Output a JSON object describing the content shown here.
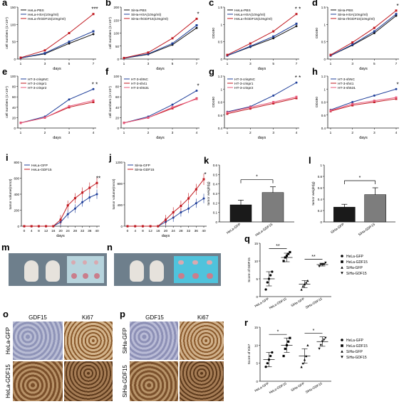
{
  "figure": {
    "colors": {
      "black": "#111111",
      "blue": "#1f3f9a",
      "red": "#c0181f",
      "pink": "#e8587a"
    },
    "photo_panels": {
      "m": {
        "letter": "m"
      },
      "n": {
        "letter": "n"
      }
    },
    "ihc_panels": {
      "o": {
        "letter": "o",
        "columns": [
          "GDF15",
          "Ki67"
        ],
        "rows": [
          "HeLa-GFP",
          "HeLa-GDF15"
        ]
      },
      "p": {
        "letter": "p",
        "columns": [
          "GDF15",
          "Ki67"
        ],
        "rows": [
          "SiHa-GFP",
          "SiHa-GDF15"
        ]
      }
    }
  },
  "chart_data": [
    {
      "panel": "a",
      "type": "line",
      "x": [
        1,
        3,
        5,
        7
      ],
      "xlabel": "days",
      "ylabel": "cell numbers (1×10⁴)",
      "ylim": [
        0,
        150
      ],
      "yticks": [
        0,
        50,
        100,
        150
      ],
      "legend": "top-left",
      "annotation": "***",
      "series": [
        {
          "name": "HeLa-PBS",
          "color": "black",
          "values": [
            3,
            15,
            45,
            72
          ]
        },
        {
          "name": "HeLa-HSA(10ng/ml)",
          "color": "blue",
          "values": [
            3,
            17,
            50,
            80
          ]
        },
        {
          "name": "HeLa-rhGDF15(10ng/ml)",
          "color": "red",
          "values": [
            4,
            25,
            75,
            130
          ]
        }
      ]
    },
    {
      "panel": "b",
      "type": "line",
      "x": [
        1,
        3,
        5,
        7
      ],
      "xlabel": "days",
      "ylabel": "cell numbers (1×10⁴)",
      "ylim": [
        0,
        200
      ],
      "yticks": [
        0,
        50,
        100,
        150,
        200
      ],
      "legend": "top-left",
      "annotation": "*",
      "series": [
        {
          "name": "SiHa-PBS",
          "color": "black",
          "values": [
            3,
            18,
            55,
            120
          ]
        },
        {
          "name": "SiHa-HSA(10ng/ml)",
          "color": "blue",
          "values": [
            3,
            20,
            60,
            130
          ]
        },
        {
          "name": "SiHa-rhGDF15(10ng/ml)",
          "color": "red",
          "values": [
            4,
            25,
            80,
            155
          ]
        }
      ]
    },
    {
      "panel": "c",
      "type": "line",
      "x": [
        1,
        3,
        5,
        7
      ],
      "xlabel": "days",
      "ylabel": "OD490",
      "ylim": [
        0,
        1.5
      ],
      "yticks": [
        0,
        0.5,
        1.0,
        1.5
      ],
      "legend": "top-left",
      "annotation": "* *",
      "series": [
        {
          "name": "HeLa-PBS",
          "color": "black",
          "values": [
            0.1,
            0.35,
            0.6,
            0.95
          ]
        },
        {
          "name": "HeLa-HSA(10ng/ml)",
          "color": "blue",
          "values": [
            0.1,
            0.37,
            0.65,
            1.02
          ]
        },
        {
          "name": "HeLa-rhGDF15(10ng/ml)",
          "color": "red",
          "values": [
            0.12,
            0.45,
            0.8,
            1.3
          ]
        }
      ]
    },
    {
      "panel": "d",
      "type": "line",
      "x": [
        1,
        3,
        5,
        7
      ],
      "xlabel": "days",
      "ylabel": "OD490",
      "ylim": [
        0,
        1.5
      ],
      "yticks": [
        0,
        0.5,
        1.0,
        1.5
      ],
      "legend": "top-left",
      "annotation": "*",
      "series": [
        {
          "name": "SiHa-PBS",
          "color": "black",
          "values": [
            0.1,
            0.4,
            0.75,
            1.25
          ]
        },
        {
          "name": "SiHa-HSA(10ng/ml)",
          "color": "blue",
          "values": [
            0.1,
            0.42,
            0.8,
            1.3
          ]
        },
        {
          "name": "SiHa-rhGDF15(10ng/ml)",
          "color": "red",
          "values": [
            0.12,
            0.48,
            0.9,
            1.4
          ]
        }
      ]
    },
    {
      "panel": "e",
      "type": "line",
      "x": [
        1,
        2,
        3,
        4
      ],
      "xlabel": "days",
      "ylabel": "cell numbers (1×10⁴)",
      "ylim": [
        0,
        100
      ],
      "yticks": [
        0,
        20,
        40,
        60,
        80,
        100
      ],
      "legend": "top-left",
      "annotation": "* *",
      "series": [
        {
          "name": "HT-3-crispNC",
          "color": "blue",
          "values": [
            10,
            22,
            55,
            75
          ]
        },
        {
          "name": "HT-3-crispr1",
          "color": "red",
          "values": [
            10,
            20,
            40,
            50
          ]
        },
        {
          "name": "HT-3-crispr2",
          "color": "pink",
          "values": [
            10,
            20,
            42,
            53
          ]
        }
      ]
    },
    {
      "panel": "f",
      "type": "line",
      "x": [
        1,
        2,
        3,
        4
      ],
      "xlabel": "days",
      "ylabel": "cell numbers (1×10⁴)",
      "ylim": [
        0,
        100
      ],
      "yticks": [
        0,
        20,
        40,
        60,
        80,
        100
      ],
      "legend": "top-left",
      "annotation": "*",
      "series": [
        {
          "name": "HT-3-shNC",
          "color": "blue",
          "values": [
            10,
            22,
            45,
            72
          ]
        },
        {
          "name": "HT-3-sh41",
          "color": "red",
          "values": [
            10,
            20,
            38,
            57
          ]
        },
        {
          "name": "HT-3-sh531",
          "color": "pink",
          "values": [
            10,
            20,
            40,
            56
          ]
        }
      ]
    },
    {
      "panel": "g",
      "type": "line",
      "x": [
        1,
        2,
        3,
        4
      ],
      "xlabel": "days",
      "ylabel": "OD490",
      "ylim": [
        0.4,
        1.2
      ],
      "yticks": [
        0.4,
        0.6,
        0.8,
        1.0,
        1.2
      ],
      "legend": "top-left",
      "annotation": "* *",
      "series": [
        {
          "name": "HT-3-crispNC",
          "color": "blue",
          "values": [
            0.65,
            0.73,
            0.9,
            1.1
          ]
        },
        {
          "name": "HT-3-crispr1",
          "color": "red",
          "values": [
            0.62,
            0.7,
            0.78,
            0.86
          ]
        },
        {
          "name": "HT-3-crispr2",
          "color": "pink",
          "values": [
            0.64,
            0.72,
            0.8,
            0.88
          ]
        }
      ]
    },
    {
      "panel": "h",
      "type": "line",
      "x": [
        1,
        2,
        3,
        4
      ],
      "xlabel": "days",
      "ylabel": "OD490",
      "ylim": [
        0.4,
        1.2
      ],
      "yticks": [
        0.4,
        0.6,
        0.8,
        1.0,
        1.2
      ],
      "legend": "top-left",
      "annotation": "*",
      "series": [
        {
          "name": "HT-3-shNC",
          "color": "blue",
          "values": [
            0.68,
            0.8,
            0.9,
            1.0
          ]
        },
        {
          "name": "HT-3-sh41",
          "color": "red",
          "values": [
            0.66,
            0.75,
            0.8,
            0.85
          ]
        },
        {
          "name": "HT-3-sh531",
          "color": "pink",
          "values": [
            0.67,
            0.77,
            0.82,
            0.87
          ]
        }
      ]
    },
    {
      "panel": "i",
      "type": "line",
      "x": [
        0,
        4,
        8,
        12,
        16,
        20,
        24,
        28,
        32,
        36,
        40
      ],
      "xlabel": "days",
      "ylabel": "tumor volume(mm3)",
      "ylim": [
        0,
        800
      ],
      "yticks": [
        0,
        200,
        400,
        600,
        800
      ],
      "legend": "top-left",
      "annotation": "**",
      "series": [
        {
          "name": "HeLa-GFP",
          "color": "blue",
          "values": [
            0,
            0,
            0,
            0,
            0,
            50,
            150,
            220,
            300,
            360,
            400
          ],
          "err": 60
        },
        {
          "name": "HeLa-GDF15",
          "color": "red",
          "values": [
            0,
            0,
            0,
            0,
            0,
            80,
            260,
            350,
            420,
            480,
            540
          ],
          "err": 70
        }
      ]
    },
    {
      "panel": "j",
      "type": "line",
      "x": [
        0,
        4,
        8,
        12,
        16,
        20,
        24,
        28,
        32,
        36,
        40
      ],
      "xlabel": "days",
      "ylabel": "tumor volume(mm3)",
      "ylim": [
        0,
        1200
      ],
      "yticks": [
        0,
        400,
        800,
        1200
      ],
      "legend": "top-left",
      "annotation": "*",
      "series": [
        {
          "name": "SiHa-GFP",
          "color": "blue",
          "values": [
            0,
            0,
            0,
            0,
            0,
            80,
            160,
            260,
            330,
            430,
            520
          ],
          "err": 90
        },
        {
          "name": "SiHa-GDF15",
          "color": "red",
          "values": [
            0,
            0,
            0,
            0,
            0,
            120,
            260,
            380,
            520,
            690,
            880
          ],
          "err": 110
        }
      ]
    },
    {
      "panel": "k",
      "type": "bar",
      "categories": [
        "HeLa-GFP",
        "HeLa-GDF15"
      ],
      "values": [
        0.18,
        0.31
      ],
      "errors": [
        0.05,
        0.06
      ],
      "ylabel": "tumor weight(g)",
      "ylim": [
        0,
        0.6
      ],
      "yticks": [
        0,
        0.1,
        0.2,
        0.3,
        0.4,
        0.5,
        0.6
      ],
      "annotation": "*"
    },
    {
      "panel": "l",
      "type": "bar",
      "categories": [
        "SiHa-GFP",
        "SiHa-GDF15"
      ],
      "values": [
        0.26,
        0.48
      ],
      "errors": [
        0.05,
        0.12
      ],
      "ylabel": "tumor weight(g)",
      "ylim": [
        0,
        1.0
      ],
      "yticks": [
        0,
        0.2,
        0.4,
        0.6,
        0.8,
        1.0
      ],
      "annotation": "*"
    },
    {
      "panel": "q",
      "type": "scatter",
      "categories": [
        "HeLa-GFP",
        "HeLa-GDF15",
        "SiHa-GFP",
        "SiHa-GDF15"
      ],
      "ylabel": "Score of GDF15",
      "ylim": [
        0,
        15
      ],
      "yticks": [
        0,
        5,
        10,
        15
      ],
      "legend": "right",
      "annotations": [
        "**",
        "**"
      ],
      "groups": [
        {
          "name": "HeLa-GFP",
          "marker": "circle",
          "points": [
            2,
            4,
            5,
            6,
            7
          ],
          "mean": 5,
          "sd": 2
        },
        {
          "name": "HeLa-GDF15",
          "marker": "square",
          "points": [
            10,
            11,
            11.5,
            12,
            12.5
          ],
          "mean": 11,
          "sd": 1.2
        },
        {
          "name": "SiHa-GFP",
          "marker": "triangle-up",
          "points": [
            2,
            3,
            3.5,
            4,
            4.5
          ],
          "mean": 3.5,
          "sd": 1
        },
        {
          "name": "SiHa-GDF15",
          "marker": "triangle-down",
          "points": [
            8.5,
            9,
            9,
            9,
            9.5
          ],
          "mean": 9,
          "sd": 0.4
        }
      ]
    },
    {
      "panel": "r",
      "type": "scatter",
      "categories": [
        "HeLa-GFP",
        "HeLa-GDF15",
        "SiHa-GFP",
        "SiHa-GDF15"
      ],
      "ylabel": "Score of Ki67",
      "ylim": [
        0,
        15
      ],
      "yticks": [
        0,
        5,
        10,
        15
      ],
      "legend": "right",
      "annotations": [
        "*",
        "*"
      ],
      "groups": [
        {
          "name": "HeLa-GFP",
          "marker": "circle",
          "points": [
            4,
            5,
            6,
            7,
            8
          ],
          "mean": 6,
          "sd": 2
        },
        {
          "name": "HeLa-GDF15",
          "marker": "square",
          "points": [
            7,
            9,
            10,
            11,
            12
          ],
          "mean": 10,
          "sd": 2
        },
        {
          "name": "SiHa-GFP",
          "marker": "triangle-up",
          "points": [
            4,
            5,
            6,
            7,
            10
          ],
          "mean": 7,
          "sd": 2
        },
        {
          "name": "SiHa-GDF15",
          "marker": "triangle-down",
          "points": [
            9,
            10,
            11,
            11.5,
            12
          ],
          "mean": 11,
          "sd": 1.3
        }
      ]
    }
  ]
}
